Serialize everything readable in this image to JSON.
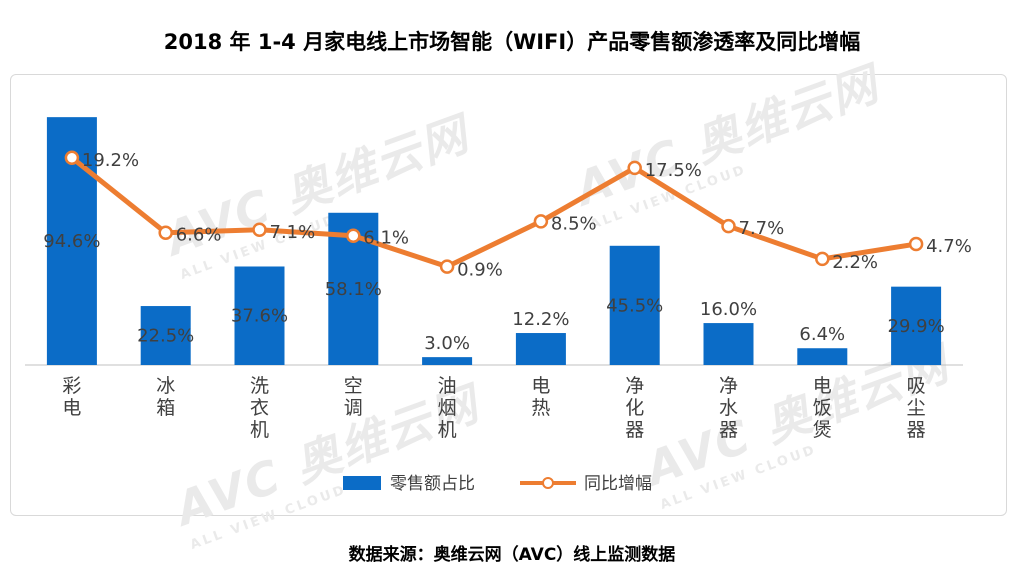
{
  "title": "2018 年 1-4 月家电线上市场智能（WIFI）产品零售额渗透率及同比增幅",
  "watermark": {
    "brand": "AVC",
    "cn": "奥维云网",
    "en": "ALL VIEW CLOUD"
  },
  "source": "数据来源：奥维云网（AVC）线上监测数据",
  "colors": {
    "bar": "#0b6cc7",
    "line": "#ed7d31",
    "axis": "#c0c0c0",
    "text": "#404040"
  },
  "chart_data": {
    "type": "bar+line",
    "categories": [
      "彩电",
      "冰箱",
      "洗衣机",
      "空调",
      "油烟机",
      "电热",
      "净化器",
      "净水器",
      "电饭煲",
      "吸尘器"
    ],
    "series": [
      {
        "name": "零售额占比",
        "type": "bar",
        "values": [
          94.6,
          22.5,
          37.6,
          58.1,
          3.0,
          12.2,
          45.5,
          16.0,
          6.4,
          29.9
        ],
        "labels": [
          "94.6%",
          "22.5%",
          "37.6%",
          "58.1%",
          "3.0%",
          "12.2%",
          "45.5%",
          "16.0%",
          "6.4%",
          "29.9%"
        ]
      },
      {
        "name": "同比增幅",
        "type": "line",
        "values": [
          19.2,
          6.6,
          7.1,
          6.1,
          0.9,
          8.5,
          17.5,
          7.7,
          2.2,
          4.7
        ],
        "labels": [
          "19.2%",
          "6.6%",
          "7.1%",
          "6.1%",
          "0.9%",
          "8.5%",
          "17.5%",
          "7.7%",
          "2.2%",
          "4.7%"
        ]
      }
    ],
    "legend_position": "bottom"
  }
}
